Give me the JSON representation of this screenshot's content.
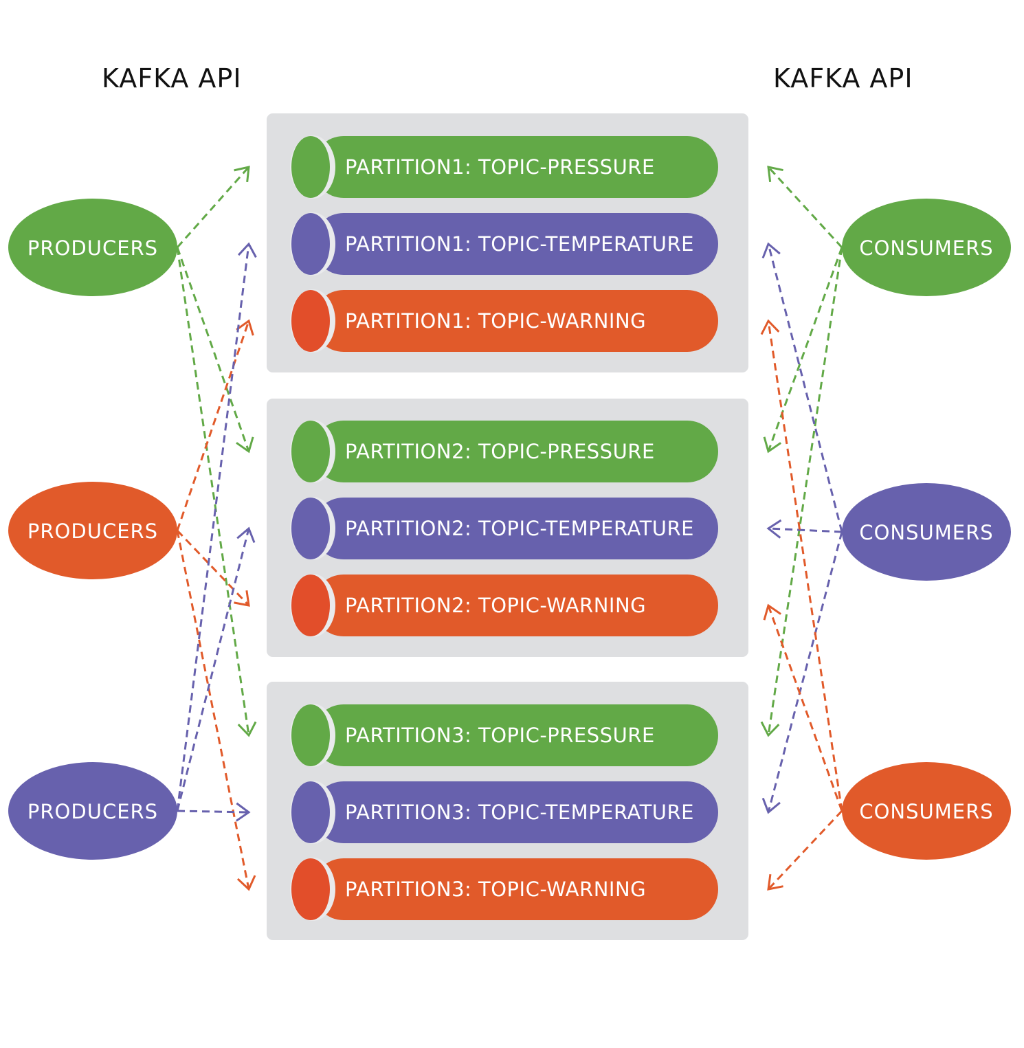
{
  "header": {
    "left_title": "KAFKA API",
    "right_title": "KAFKA API"
  },
  "colors": {
    "green": "#62a947",
    "purple": "#6761ad",
    "orange": "#e15a2a",
    "orange_cap": "#e24e2a",
    "panel": "#dedfe1",
    "text_light": "#ffffff"
  },
  "producers": [
    {
      "label": "PRODUCERS",
      "color": "green"
    },
    {
      "label": "PRODUCERS",
      "color": "orange"
    },
    {
      "label": "PRODUCERS",
      "color": "purple"
    }
  ],
  "consumers": [
    {
      "label": "CONSUMERS",
      "color": "green"
    },
    {
      "label": "CONSUMERS",
      "color": "purple"
    },
    {
      "label": "CONSUMERS",
      "color": "orange"
    }
  ],
  "partitions": [
    {
      "topics": [
        {
          "label": "PARTITION1: TOPIC-PRESSURE",
          "color": "green"
        },
        {
          "label": "PARTITION1: TOPIC-TEMPERATURE",
          "color": "purple"
        },
        {
          "label": "PARTITION1: TOPIC-WARNING",
          "color": "orange"
        }
      ]
    },
    {
      "topics": [
        {
          "label": "PARTITION2: TOPIC-PRESSURE",
          "color": "green"
        },
        {
          "label": "PARTITION2: TOPIC-TEMPERATURE",
          "color": "purple"
        },
        {
          "label": "PARTITION2: TOPIC-WARNING",
          "color": "orange"
        }
      ]
    },
    {
      "topics": [
        {
          "label": "PARTITION3: TOPIC-PRESSURE",
          "color": "green"
        },
        {
          "label": "PARTITION3: TOPIC-TEMPERATURE",
          "color": "purple"
        },
        {
          "label": "PARTITION3: TOPIC-WARNING",
          "color": "orange"
        }
      ]
    }
  ]
}
